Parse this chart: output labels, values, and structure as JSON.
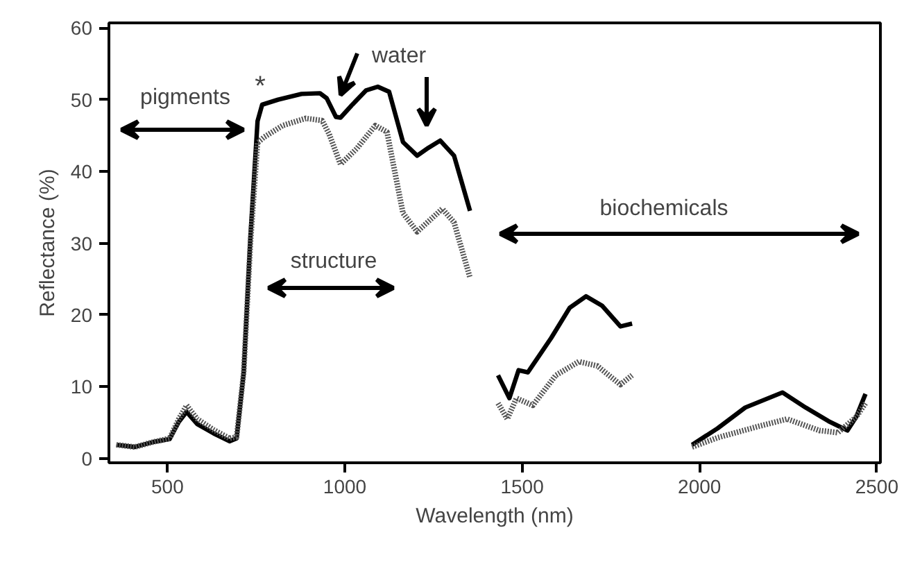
{
  "chart_data": {
    "type": "line",
    "xlabel": "Wavelength (nm)",
    "ylabel": "Reflectance (%)",
    "xlim": [
      335,
      2510
    ],
    "ylim": [
      -0.6,
      60.7
    ],
    "xticks": [
      500,
      1000,
      1500,
      2000,
      2500
    ],
    "yticks": [
      0,
      10,
      20,
      30,
      40,
      50,
      60
    ],
    "grid": false,
    "series": [
      {
        "color": "#000000",
        "line_style": "solid",
        "x": [
          356,
          408,
          460,
          506,
          532,
          554,
          584,
          630,
          675,
          695,
          715,
          734,
          754,
          767,
          812,
          878,
          930,
          949,
          975,
          988,
          1021,
          1060,
          1093,
          1125,
          1164,
          1204,
          1236,
          1269,
          1308,
          1353,
          1390,
          1432,
          1464,
          1490,
          1516,
          1582,
          1634,
          1680,
          1725,
          1777,
          1810,
          1900,
          1979,
          2051,
          2129,
          2234,
          2299,
          2364,
          2417,
          2442,
          2468
        ],
        "values": [
          1.9,
          1.6,
          2.3,
          2.7,
          5.1,
          6.5,
          4.8,
          3.5,
          2.4,
          2.8,
          12,
          31,
          47,
          49.3,
          50,
          50.8,
          50.9,
          50.2,
          47.6,
          47.5,
          49.3,
          51.3,
          51.8,
          51.1,
          44.1,
          42.2,
          43.3,
          44.3,
          42.2,
          34.5,
          null,
          11.6,
          8.4,
          12.3,
          12,
          16.8,
          21,
          22.6,
          21.3,
          18.4,
          18.8,
          null,
          1.9,
          4.2,
          7.1,
          9.2,
          7.1,
          5.2,
          3.9,
          5.8,
          9.0
        ]
      },
      {
        "color": "#555555",
        "line_style": "dotted",
        "x": [
          356,
          408,
          460,
          506,
          532,
          554,
          584,
          630,
          675,
          695,
          715,
          734,
          754,
          773,
          825,
          890,
          936,
          956,
          988,
          1034,
          1086,
          1119,
          1138,
          1164,
          1204,
          1275,
          1308,
          1353,
          1390,
          1432,
          1458,
          1484,
          1530,
          1595,
          1660,
          1712,
          1777,
          1810,
          1900,
          1979,
          2051,
          2168,
          2247,
          2338,
          2390,
          2442,
          2468
        ],
        "values": [
          1.9,
          1.6,
          2.3,
          2.8,
          5.5,
          7.4,
          5.5,
          4.0,
          2.8,
          3.0,
          12,
          30,
          44,
          44.8,
          46.4,
          47.4,
          47.1,
          45.2,
          41.0,
          43.2,
          46.4,
          45.5,
          40.7,
          34.2,
          31.6,
          34.8,
          32.9,
          25.2,
          null,
          7.7,
          5.5,
          8.4,
          7.4,
          11.6,
          13.5,
          12.9,
          10.3,
          11.6,
          null,
          1.6,
          2.9,
          4.5,
          5.5,
          3.9,
          3.6,
          5.8,
          7.7
        ]
      }
    ],
    "annotations": [
      "pigments",
      "structure",
      "biochemicals",
      "water",
      "*"
    ]
  }
}
